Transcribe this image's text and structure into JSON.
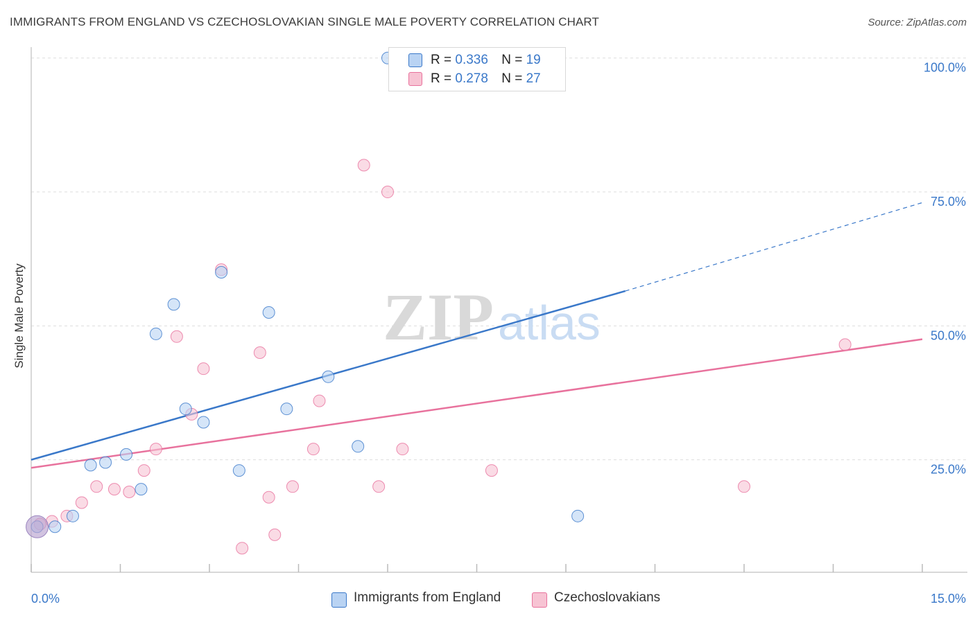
{
  "title": "IMMIGRANTS FROM ENGLAND VS CZECHOSLOVAKIAN SINGLE MALE POVERTY CORRELATION CHART",
  "source": "Source: ZipAtlas.com",
  "watermark": {
    "zip": "ZIP",
    "atlas": "atlas"
  },
  "colors": {
    "blue": "#3a78c9",
    "blue_fill": "#b9d3f3",
    "pink": "#e8729d",
    "pink_fill": "#f7c3d3",
    "grid": "#dddddd",
    "tick_label": "#3a78c9"
  },
  "legend": {
    "rows": [
      {
        "r_label": "R =",
        "r_value": "0.336",
        "n_label": "N =",
        "n_value": "19"
      },
      {
        "r_label": "R =",
        "r_value": "0.278",
        "n_label": "N =",
        "n_value": "27"
      }
    ]
  },
  "bottom_legend": [
    "Immigrants from England",
    "Czechoslovakians"
  ],
  "chart_data": {
    "type": "scatter",
    "ylabel": "Single Male Poverty",
    "xlabel": "",
    "xlim": [
      0,
      15
    ],
    "ylim": [
      4,
      101
    ],
    "x_tick_labels": [
      "0.0%",
      "15.0%"
    ],
    "y_ticks": [
      25,
      50,
      75,
      100
    ],
    "y_tick_labels": [
      "25.0%",
      "50.0%",
      "75.0%",
      "100.0%"
    ],
    "grid": true,
    "legend_position": "top-center",
    "series": [
      {
        "name": "Immigrants from England",
        "color": "#3a78c9",
        "points": [
          [
            0.1,
            12.5
          ],
          [
            0.4,
            12.5
          ],
          [
            0.7,
            14.5
          ],
          [
            1.0,
            24.0
          ],
          [
            1.25,
            24.5
          ],
          [
            1.6,
            26.0
          ],
          [
            1.85,
            19.5
          ],
          [
            2.1,
            48.5
          ],
          [
            2.4,
            54.0
          ],
          [
            2.6,
            34.5
          ],
          [
            2.9,
            32.0
          ],
          [
            3.2,
            60.0
          ],
          [
            3.5,
            23.0
          ],
          [
            4.0,
            52.5
          ],
          [
            4.3,
            34.5
          ],
          [
            5.0,
            40.5
          ],
          [
            5.5,
            27.5
          ],
          [
            6.0,
            100.0
          ],
          [
            9.2,
            14.5
          ]
        ],
        "trend": {
          "x0": 0,
          "y0": 25,
          "x1": 10.0,
          "y1": 56.5,
          "dash_to_x": 15,
          "dash_to_y": 73
        }
      },
      {
        "name": "Czechoslovakians",
        "color": "#e8729d",
        "points": [
          [
            0.35,
            13.5
          ],
          [
            0.6,
            14.5
          ],
          [
            0.85,
            17.0
          ],
          [
            1.1,
            20.0
          ],
          [
            1.4,
            19.5
          ],
          [
            1.65,
            19.0
          ],
          [
            1.9,
            23.0
          ],
          [
            2.1,
            27.0
          ],
          [
            2.45,
            48.0
          ],
          [
            2.7,
            33.5
          ],
          [
            2.9,
            42.0
          ],
          [
            3.2,
            60.5
          ],
          [
            3.55,
            8.5
          ],
          [
            3.85,
            45.0
          ],
          [
            4.0,
            18.0
          ],
          [
            4.1,
            11.0
          ],
          [
            4.4,
            20.0
          ],
          [
            4.75,
            27.0
          ],
          [
            4.85,
            36.0
          ],
          [
            5.6,
            80.0
          ],
          [
            5.85,
            20.0
          ],
          [
            6.0,
            75.0
          ],
          [
            6.25,
            27.0
          ],
          [
            7.75,
            23.0
          ],
          [
            12.0,
            20.0
          ],
          [
            13.7,
            46.5
          ],
          [
            0.15,
            13.0
          ]
        ],
        "trend": {
          "x0": 0,
          "y0": 23.5,
          "x1": 15,
          "y1": 47.5
        }
      }
    ]
  }
}
